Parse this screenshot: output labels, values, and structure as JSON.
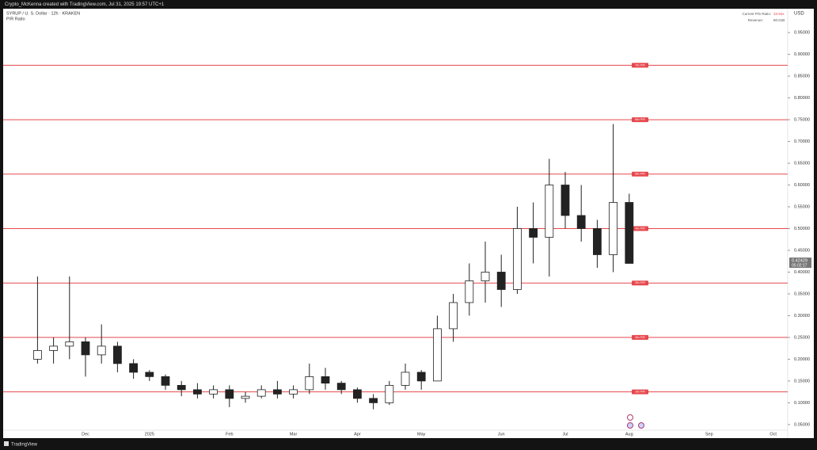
{
  "header": {
    "credit": "Crypto_McKenna created with TradingView.com, Jul 31, 2025 19:57 UTC+1",
    "symbol": "SYRUP / U. S. Dollar · 12h · KRAKEN",
    "indicator": "P/R Ratio",
    "currency": "USD",
    "footer": "TradingView"
  },
  "info": {
    "ratio_label": "Current P/S Ratio:",
    "ratio_value": "33.94x",
    "revenue_label": "Revenue:",
    "revenue_value": "80.01B"
  },
  "chart_data": {
    "type": "candlestick",
    "categories": [
      null,
      null,
      null,
      "Dec",
      null,
      null,
      null,
      "2025",
      null,
      null,
      null,
      null,
      "Feb",
      null,
      null,
      null,
      "Mar",
      null,
      null,
      null,
      "Apr",
      null,
      null,
      null,
      "May",
      null,
      null,
      null,
      null,
      "Jun",
      null,
      null,
      null,
      "Jul",
      null,
      null,
      null,
      "Aug",
      null,
      null,
      null,
      null,
      "Sep",
      null,
      null,
      null,
      "Oct"
    ],
    "open": [
      0.2,
      0.22,
      0.23,
      0.24,
      0.21,
      0.23,
      0.19,
      0.17,
      0.16,
      0.14,
      0.13,
      0.12,
      0.13,
      0.11,
      0.115,
      0.13,
      0.12,
      0.13,
      0.16,
      0.145,
      0.13,
      0.11,
      0.1,
      0.14,
      0.17,
      0.15,
      0.27,
      0.33,
      0.38,
      0.4,
      0.36,
      0.5,
      0.48,
      0.6,
      0.53,
      0.5,
      0.44,
      0.56,
      null,
      null,
      null,
      null,
      null,
      null,
      null,
      null,
      null
    ],
    "high": [
      0.39,
      0.25,
      0.39,
      0.25,
      0.28,
      0.24,
      0.2,
      0.175,
      0.165,
      0.15,
      0.145,
      0.14,
      0.14,
      0.125,
      0.14,
      0.15,
      0.14,
      0.19,
      0.18,
      0.15,
      0.135,
      0.12,
      0.15,
      0.19,
      0.175,
      0.3,
      0.35,
      0.42,
      0.47,
      0.44,
      0.55,
      0.56,
      0.66,
      0.63,
      0.6,
      0.52,
      0.74,
      0.58,
      null,
      null,
      null,
      null,
      null,
      null,
      null,
      null,
      null
    ],
    "low": [
      0.19,
      0.19,
      0.2,
      0.16,
      0.19,
      0.17,
      0.155,
      0.15,
      0.13,
      0.115,
      0.11,
      0.11,
      0.09,
      0.1,
      0.11,
      0.11,
      0.11,
      0.12,
      0.13,
      0.12,
      0.1,
      0.085,
      0.095,
      0.13,
      0.13,
      0.15,
      0.24,
      0.3,
      0.33,
      0.32,
      0.35,
      0.42,
      0.39,
      0.5,
      0.47,
      0.41,
      0.4,
      0.42,
      null,
      null,
      null,
      null,
      null,
      null,
      null,
      null,
      null
    ],
    "close": [
      0.22,
      0.23,
      0.24,
      0.21,
      0.23,
      0.19,
      0.17,
      0.16,
      0.14,
      0.13,
      0.12,
      0.13,
      0.11,
      0.115,
      0.13,
      0.12,
      0.13,
      0.16,
      0.145,
      0.13,
      0.11,
      0.1,
      0.14,
      0.17,
      0.15,
      0.27,
      0.33,
      0.38,
      0.4,
      0.36,
      0.5,
      0.48,
      0.6,
      0.53,
      0.5,
      0.44,
      0.56,
      0.42,
      null,
      null,
      null,
      null,
      null,
      null,
      null,
      null,
      null
    ],
    "up_color": "#ffffff",
    "down_color": "#222222",
    "wick_color": "#222222",
    "levels": [
      {
        "value": 0.125,
        "label": "10x P/R"
      },
      {
        "value": 0.25,
        "label": "20x P/R"
      },
      {
        "value": 0.375,
        "label": "30x P/R"
      },
      {
        "value": 0.5,
        "label": "40x P/R"
      },
      {
        "value": 0.625,
        "label": "50x P/R"
      },
      {
        "value": 0.75,
        "label": "60x P/R"
      },
      {
        "value": 0.875,
        "label": "70x P/R"
      }
    ],
    "level_color": "#e5484d",
    "last_price": 0.42429,
    "countdown": "05:02:17",
    "ylim": [
      0.037,
      1.003
    ],
    "yticks": [
      {
        "value": 0.05,
        "label": "0.05000"
      },
      {
        "value": 0.1,
        "label": "0.10000"
      },
      {
        "value": 0.15,
        "label": "0.15000"
      },
      {
        "value": 0.2,
        "label": "0.20000"
      },
      {
        "value": 0.25,
        "label": "0.25000"
      },
      {
        "value": 0.3,
        "label": "0.30000"
      },
      {
        "value": 0.35,
        "label": "0.35000"
      },
      {
        "value": 0.4,
        "label": "0.40000"
      },
      {
        "value": 0.45,
        "label": "0.45000"
      },
      {
        "value": 0.5,
        "label": "0.50000"
      },
      {
        "value": 0.55,
        "label": "0.55000"
      },
      {
        "value": 0.6,
        "label": "0.60000"
      },
      {
        "value": 0.65,
        "label": "0.65000"
      },
      {
        "value": 0.7,
        "label": "0.70000"
      },
      {
        "value": 0.75,
        "label": "0.75000"
      },
      {
        "value": 0.8,
        "label": "0.80000"
      },
      {
        "value": 0.85,
        "label": "0.85000"
      },
      {
        "value": 0.9,
        "label": "0.90000"
      },
      {
        "value": 0.95,
        "label": "0.95000"
      }
    ],
    "grid": false
  }
}
